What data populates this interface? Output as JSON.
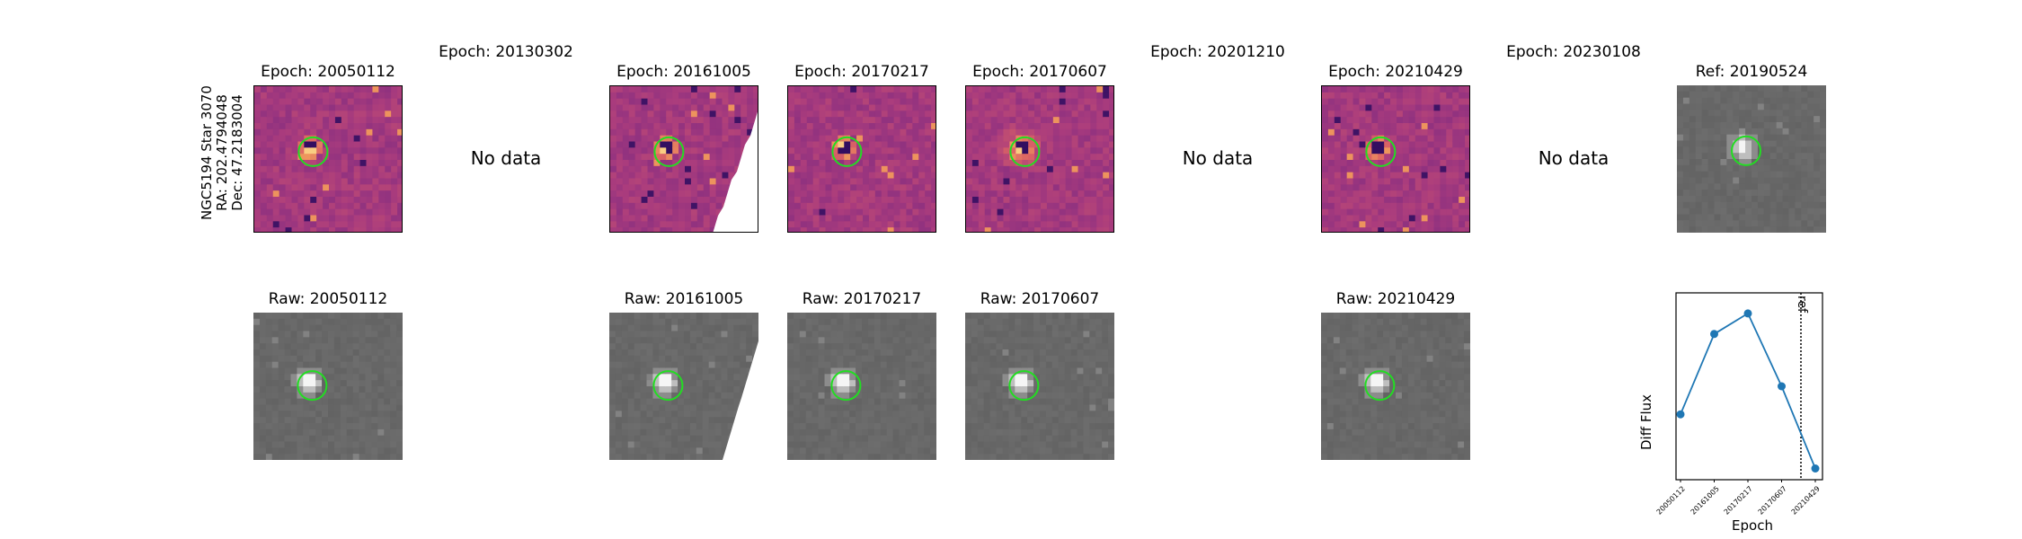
{
  "figure": {
    "star_label": [
      "NGC5194 Star 3070",
      "RA: 202.4794048",
      "Dec: 47.2183004"
    ],
    "no_data_text": "No data"
  },
  "diff_panels": [
    {
      "title": "Epoch: 20050112",
      "has_data": true
    },
    {
      "title": "Epoch: 20130302",
      "has_data": false
    },
    {
      "title": "Epoch: 20161005",
      "has_data": true,
      "masked": true
    },
    {
      "title": "Epoch: 20170217",
      "has_data": true
    },
    {
      "title": "Epoch: 20170607",
      "has_data": true
    },
    {
      "title": "Epoch: 20201210",
      "has_data": false
    },
    {
      "title": "Epoch: 20210429",
      "has_data": true
    },
    {
      "title": "Epoch: 20230108",
      "has_data": false
    },
    {
      "title": "Ref: 20190524",
      "has_data": true,
      "grayscale": true
    }
  ],
  "raw_panels": [
    {
      "title": "Raw: 20050112"
    },
    {
      "title": "Raw: 20161005",
      "masked": true
    },
    {
      "title": "Raw: 20170217"
    },
    {
      "title": "Raw: 20170607"
    },
    {
      "title": "Raw: 20210429"
    }
  ],
  "colors": {
    "diff_base": "#a0407f",
    "raw_base": "#6a6a6a",
    "circle": "#22dd22",
    "series": "#1f77b4"
  },
  "chart_data": {
    "type": "line",
    "title": "",
    "xlabel": "Epoch",
    "ylabel": "Diff Flux",
    "categories": [
      "20050112",
      "20161005",
      "20170217",
      "20170607",
      "20210429"
    ],
    "series": [
      {
        "values": [
          0.35,
          0.78,
          0.89,
          0.5,
          0.06
        ]
      }
    ],
    "ref_line": {
      "label": "ref",
      "position_between": [
        "20170607",
        "20210429"
      ],
      "style": "dotted"
    },
    "yticks": "none",
    "grid": false
  }
}
